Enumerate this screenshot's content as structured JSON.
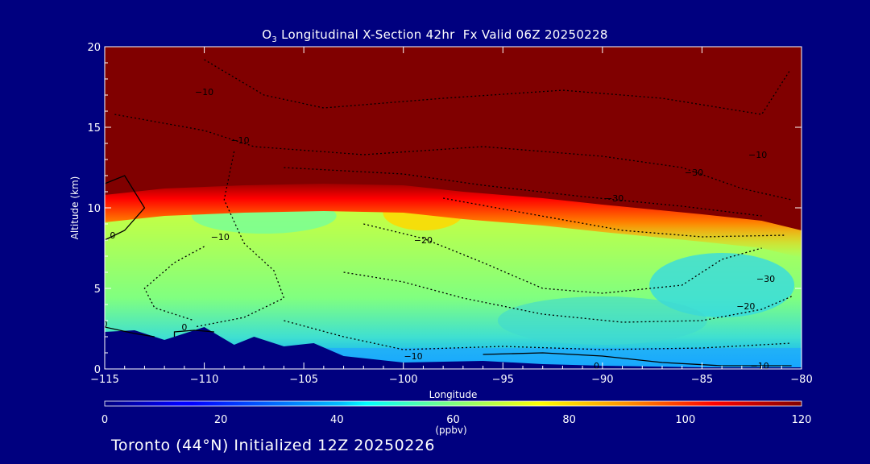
{
  "title": {
    "species_main": "O",
    "species_sub": "3",
    "rest": " Longitudinal X-Section 42hr  Fx Valid 06Z 20250228"
  },
  "footer": "Toronto (44°N) Initialized 12Z 20250226",
  "colors": {
    "background": "#00007f",
    "text": "#ffffff",
    "contour_line": "#000000"
  },
  "chart_data": {
    "type": "heatmap",
    "xlabel": "Longitude",
    "ylabel": "Altitude (km)",
    "xlim": [
      -115,
      -80
    ],
    "ylim": [
      0,
      20
    ],
    "xticks": [
      -115,
      -110,
      -105,
      -100,
      -95,
      -90,
      -85,
      -80
    ],
    "xtick_labels": [
      "−115",
      "−110",
      "−105",
      "−100",
      "−95",
      "−90",
      "−85",
      "−80"
    ],
    "yticks": [
      0,
      5,
      10,
      15,
      20
    ],
    "ytick_labels": [
      "0",
      "5",
      "10",
      "15",
      "20"
    ],
    "colorbar": {
      "label": "(ppbv)",
      "range": [
        0,
        120
      ],
      "ticks": [
        0,
        20,
        40,
        60,
        80,
        100,
        120
      ],
      "tick_labels": [
        "0",
        "20",
        "40",
        "60",
        "80",
        "100",
        "120"
      ],
      "colormap": "jet"
    },
    "tropopause_height": {
      "description_values_km": "ozone >=120 ppbv above these heights",
      "x": [
        -115,
        -112,
        -108,
        -104,
        -100,
        -97,
        -93,
        -90,
        -85,
        -82,
        -80
      ],
      "y": [
        10.8,
        11.2,
        11.4,
        11.5,
        11.4,
        11.0,
        10.6,
        10.2,
        9.6,
        9.2,
        8.6
      ]
    },
    "terrain_height": {
      "x": [
        -115,
        -113.5,
        -112,
        -110,
        -108.5,
        -107.5,
        -106,
        -104.5,
        -103,
        -100,
        -96,
        -93,
        -90,
        -85,
        -80
      ],
      "y": [
        2.3,
        2.4,
        1.8,
        2.6,
        1.5,
        2.0,
        1.4,
        1.6,
        0.8,
        0.4,
        0.5,
        0.3,
        0.2,
        0.1,
        0.1
      ]
    },
    "contour_labels": [
      {
        "text": "−10",
        "x": -110,
        "y": 17.2
      },
      {
        "text": "−10",
        "x": -108.2,
        "y": 14.2
      },
      {
        "text": "−30",
        "x": -85.4,
        "y": 12.2
      },
      {
        "text": "−10",
        "x": -82.2,
        "y": 13.3
      },
      {
        "text": "−30",
        "x": -89.4,
        "y": 10.6
      },
      {
        "text": "−20",
        "x": -99,
        "y": 8.0
      },
      {
        "text": "−10",
        "x": -109.2,
        "y": 8.2
      },
      {
        "text": "0",
        "x": -114.6,
        "y": 8.3
      },
      {
        "text": "−30",
        "x": -81.8,
        "y": 5.6
      },
      {
        "text": "−20",
        "x": -82.8,
        "y": 3.9
      },
      {
        "text": "0",
        "x": -115,
        "y": 2.8
      },
      {
        "text": "0",
        "x": -111,
        "y": 2.6
      },
      {
        "text": "−10",
        "x": -99.5,
        "y": 0.8
      },
      {
        "text": "0",
        "x": -90.3,
        "y": 0.2
      },
      {
        "text": "−10",
        "x": -82.1,
        "y": 0.2
      }
    ]
  }
}
